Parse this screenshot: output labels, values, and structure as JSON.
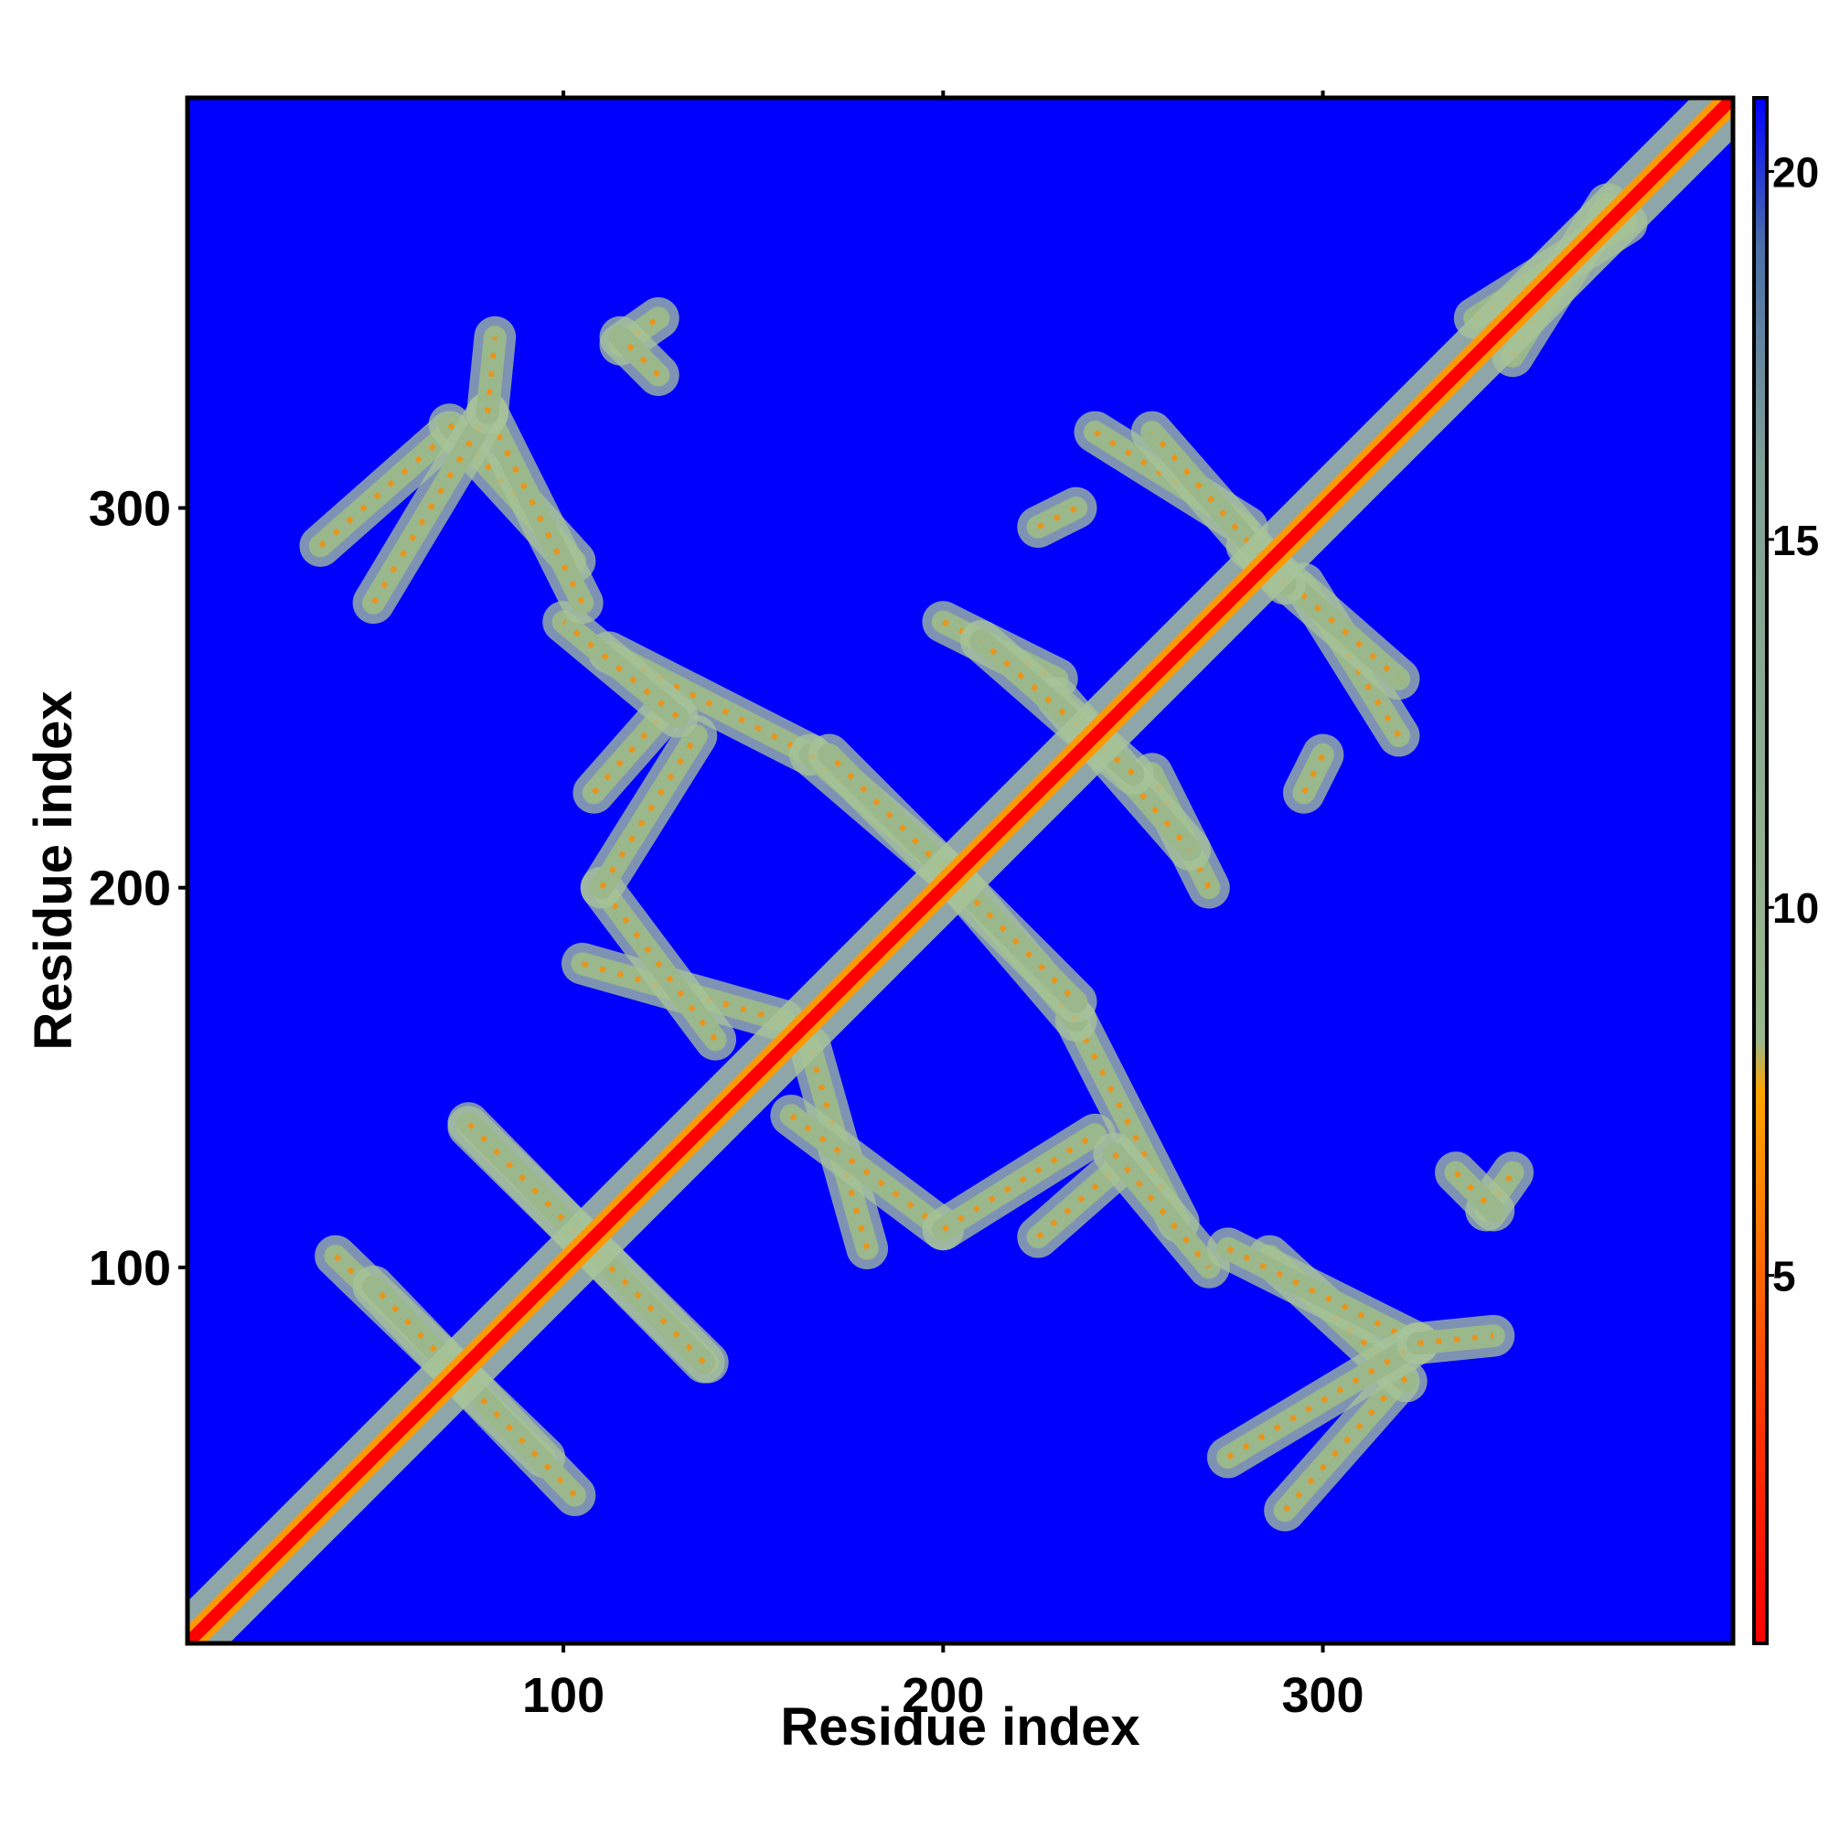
{
  "chart_data": {
    "type": "heatmap",
    "title": "",
    "xlabel": "Residue index",
    "ylabel": "Residue index",
    "xlim": [
      1,
      408
    ],
    "ylim": [
      1,
      408
    ],
    "x_ticks": [
      100,
      200,
      300
    ],
    "y_ticks": [
      100,
      200,
      300
    ],
    "colorbar": {
      "range": [
        0,
        21
      ],
      "ticks": [
        5,
        10,
        15,
        20
      ],
      "stops": [
        {
          "value": 0,
          "color": "#ff0000"
        },
        {
          "value": 3,
          "color": "#ff3300"
        },
        {
          "value": 5,
          "color": "#ff6600"
        },
        {
          "value": 7.5,
          "color": "#ffa500"
        },
        {
          "value": 8.2,
          "color": "#9ab88c"
        },
        {
          "value": 16,
          "color": "#7fa096"
        },
        {
          "value": 19,
          "color": "#4a6fa8"
        },
        {
          "value": 21,
          "color": "#0000ff"
        }
      ]
    },
    "background_value": 21,
    "background_color": "#0000ff",
    "diagonal": {
      "value": 1.5,
      "band_width": 6
    },
    "contact_bands": [
      {
        "from": [
          40,
          103
        ],
        "to": [
          95,
          50
        ],
        "value": 9
      },
      {
        "from": [
          75,
          137
        ],
        "to": [
          138,
          75
        ],
        "value": 9
      },
      {
        "from": [
          36,
          290
        ],
        "to": [
          70,
          320
        ],
        "value": 9
      },
      {
        "from": [
          70,
          322
        ],
        "to": [
          103,
          286
        ],
        "value": 9
      },
      {
        "from": [
          105,
          180
        ],
        "to": [
          158,
          165
        ],
        "value": 9
      },
      {
        "from": [
          108,
          225
        ],
        "to": [
          130,
          250
        ],
        "value": 9
      },
      {
        "from": [
          112,
          262
        ],
        "to": [
          165,
          235
        ],
        "value": 10
      },
      {
        "from": [
          165,
          235
        ],
        "to": [
          200,
          205
        ],
        "value": 9
      },
      {
        "from": [
          160,
          140
        ],
        "to": [
          200,
          110
        ],
        "value": 9
      },
      {
        "from": [
          200,
          110
        ],
        "to": [
          240,
          135
        ],
        "value": 9
      },
      {
        "from": [
          245,
          130
        ],
        "to": [
          270,
          100
        ],
        "value": 11
      },
      {
        "from": [
          205,
          200
        ],
        "to": [
          235,
          170
        ],
        "value": 9
      },
      {
        "from": [
          200,
          270
        ],
        "to": [
          230,
          255
        ],
        "value": 10
      },
      {
        "from": [
          230,
          250
        ],
        "to": [
          265,
          210
        ],
        "value": 9
      },
      {
        "from": [
          240,
          320
        ],
        "to": [
          280,
          295
        ],
        "value": 9
      },
      {
        "from": [
          280,
          290
        ],
        "to": [
          320,
          255
        ],
        "value": 9
      },
      {
        "from": [
          275,
          105
        ],
        "to": [
          325,
          80
        ],
        "value": 9
      },
      {
        "from": [
          275,
          50
        ],
        "to": [
          325,
          80
        ],
        "value": 9
      },
      {
        "from": [
          325,
          80
        ],
        "to": [
          345,
          82
        ],
        "value": 11
      },
      {
        "from": [
          340,
          350
        ],
        "to": [
          380,
          375
        ],
        "value": 11
      },
      {
        "from": [
          115,
          343
        ],
        "to": [
          125,
          350
        ],
        "value": 14
      },
      {
        "from": [
          225,
          295
        ],
        "to": [
          235,
          300
        ],
        "value": 14
      },
      {
        "from": [
          335,
          125
        ],
        "to": [
          345,
          115
        ],
        "value": 14
      }
    ]
  }
}
